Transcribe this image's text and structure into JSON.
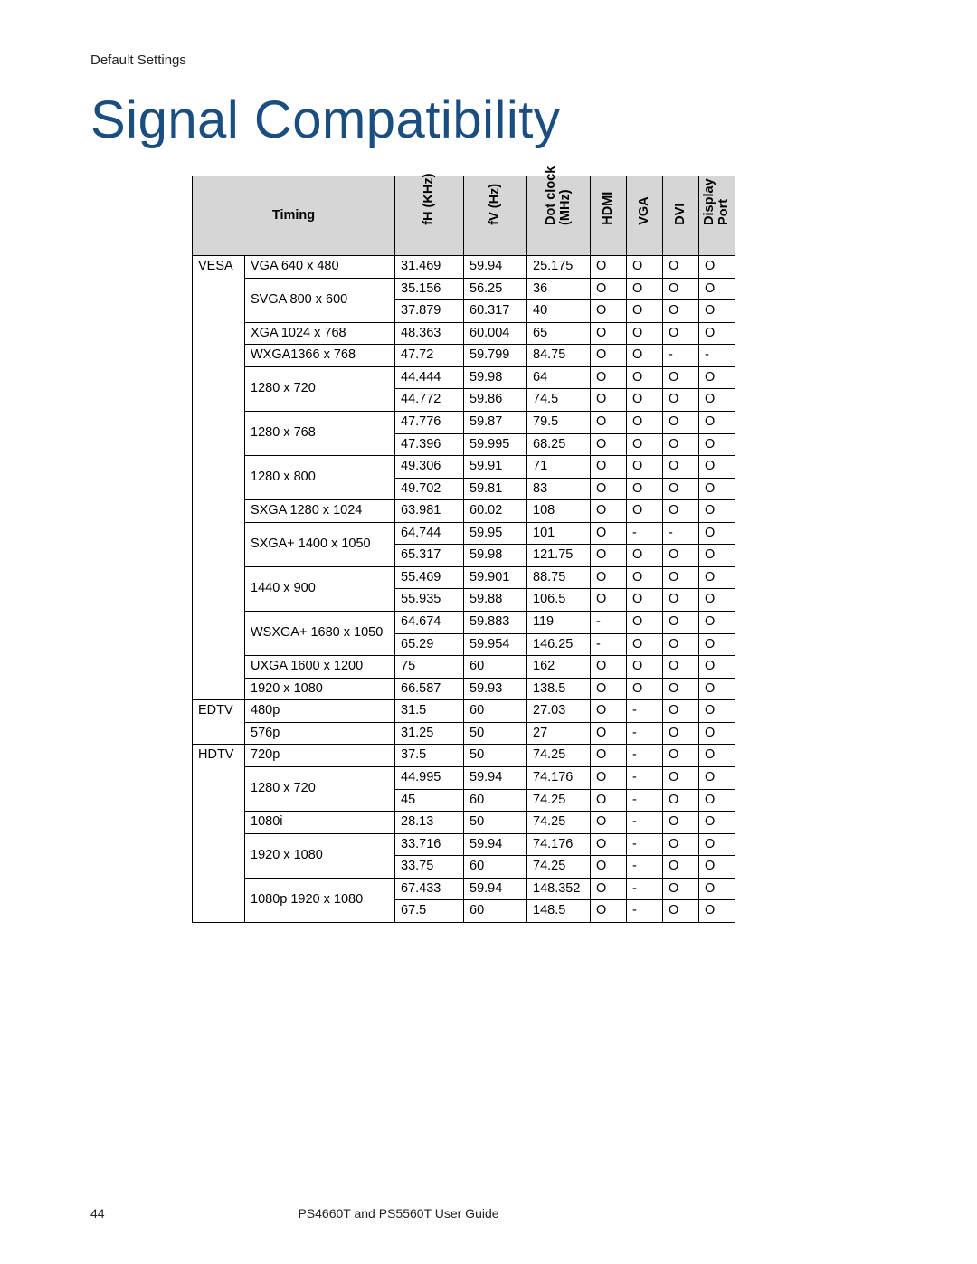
{
  "breadcrumb": "Default Settings",
  "title": "Signal Compatibility",
  "title_color": "#1a4d80",
  "header_bg": "#d6d6d6",
  "columns": {
    "timing": "Timing",
    "fh": "fH (KHz)",
    "fv": "fV (Hz)",
    "dotclock": "Dot clock (MHz)",
    "hdmi": "HDMI",
    "vga": "VGA",
    "dvi": "DVI",
    "dp": "Display Port"
  },
  "categories": [
    "VESA",
    "EDTV",
    "HDTV"
  ],
  "rows": [
    {
      "cat": "VESA",
      "res": "VGA 640 x 480",
      "fh": "31.469",
      "fv": "59.94",
      "dot": "25.175",
      "hdmi": "O",
      "vga": "O",
      "dvi": "O",
      "dp": "O"
    },
    {
      "cat": "",
      "res": "SVGA 800 x 600",
      "fh": "35.156",
      "fv": "56.25",
      "dot": "36",
      "hdmi": "O",
      "vga": "O",
      "dvi": "O",
      "dp": "O"
    },
    {
      "cat": "",
      "res": "",
      "fh": "37.879",
      "fv": "60.317",
      "dot": "40",
      "hdmi": "O",
      "vga": "O",
      "dvi": "O",
      "dp": "O"
    },
    {
      "cat": "",
      "res": "XGA 1024 x 768",
      "fh": "48.363",
      "fv": "60.004",
      "dot": "65",
      "hdmi": "O",
      "vga": "O",
      "dvi": "O",
      "dp": "O"
    },
    {
      "cat": "",
      "res": "WXGA1366 x 768",
      "fh": "47.72",
      "fv": "59.799",
      "dot": "84.75",
      "hdmi": "O",
      "vga": "O",
      "dvi": "-",
      "dp": "-"
    },
    {
      "cat": "",
      "res": "1280 x 720",
      "fh": "44.444",
      "fv": "59.98",
      "dot": "64",
      "hdmi": "O",
      "vga": "O",
      "dvi": "O",
      "dp": "O"
    },
    {
      "cat": "",
      "res": "",
      "fh": "44.772",
      "fv": "59.86",
      "dot": "74.5",
      "hdmi": "O",
      "vga": "O",
      "dvi": "O",
      "dp": "O"
    },
    {
      "cat": "",
      "res": "1280 x 768",
      "fh": "47.776",
      "fv": "59.87",
      "dot": "79.5",
      "hdmi": "O",
      "vga": "O",
      "dvi": "O",
      "dp": "O"
    },
    {
      "cat": "",
      "res": "",
      "fh": "47.396",
      "fv": "59.995",
      "dot": "68.25",
      "hdmi": "O",
      "vga": "O",
      "dvi": "O",
      "dp": "O"
    },
    {
      "cat": "",
      "res": "1280 x 800",
      "fh": "49.306",
      "fv": "59.91",
      "dot": "71",
      "hdmi": "O",
      "vga": "O",
      "dvi": "O",
      "dp": "O"
    },
    {
      "cat": "",
      "res": "",
      "fh": "49.702",
      "fv": "59.81",
      "dot": "83",
      "hdmi": "O",
      "vga": "O",
      "dvi": "O",
      "dp": "O"
    },
    {
      "cat": "",
      "res": "SXGA 1280 x 1024",
      "fh": "63.981",
      "fv": "60.02",
      "dot": "108",
      "hdmi": "O",
      "vga": "O",
      "dvi": "O",
      "dp": "O"
    },
    {
      "cat": "",
      "res": "SXGA+ 1400 x 1050",
      "fh": "64.744",
      "fv": "59.95",
      "dot": "101",
      "hdmi": "O",
      "vga": "-",
      "dvi": "-",
      "dp": "O"
    },
    {
      "cat": "",
      "res": "",
      "fh": "65.317",
      "fv": "59.98",
      "dot": "121.75",
      "hdmi": "O",
      "vga": "O",
      "dvi": "O",
      "dp": "O"
    },
    {
      "cat": "",
      "res": "1440 x 900",
      "fh": "55.469",
      "fv": "59.901",
      "dot": "88.75",
      "hdmi": "O",
      "vga": "O",
      "dvi": "O",
      "dp": "O"
    },
    {
      "cat": "",
      "res": "",
      "fh": "55.935",
      "fv": "59.88",
      "dot": "106.5",
      "hdmi": "O",
      "vga": "O",
      "dvi": "O",
      "dp": "O"
    },
    {
      "cat": "",
      "res": "WSXGA+ 1680 x 1050",
      "fh": "64.674",
      "fv": "59.883",
      "dot": "119",
      "hdmi": "-",
      "vga": "O",
      "dvi": "O",
      "dp": "O"
    },
    {
      "cat": "",
      "res": "",
      "fh": "65.29",
      "fv": "59.954",
      "dot": "146.25",
      "hdmi": "-",
      "vga": "O",
      "dvi": "O",
      "dp": "O"
    },
    {
      "cat": "",
      "res": "UXGA 1600 x 1200",
      "fh": "75",
      "fv": "60",
      "dot": "162",
      "hdmi": "O",
      "vga": "O",
      "dvi": "O",
      "dp": "O"
    },
    {
      "cat": "",
      "res": "1920 x 1080",
      "fh": "66.587",
      "fv": "59.93",
      "dot": "138.5",
      "hdmi": "O",
      "vga": "O",
      "dvi": "O",
      "dp": "O"
    },
    {
      "cat": "EDTV",
      "res": "480p",
      "fh": "31.5",
      "fv": "60",
      "dot": "27.03",
      "hdmi": "O",
      "vga": "-",
      "dvi": "O",
      "dp": "O"
    },
    {
      "cat": "",
      "res": "576p",
      "fh": "31.25",
      "fv": "50",
      "dot": "27",
      "hdmi": "O",
      "vga": "-",
      "dvi": "O",
      "dp": "O"
    },
    {
      "cat": "HDTV",
      "res": "720p",
      "fh": "37.5",
      "fv": "50",
      "dot": "74.25",
      "hdmi": "O",
      "vga": "-",
      "dvi": "O",
      "dp": "O"
    },
    {
      "cat": "",
      "res": "1280 x 720",
      "fh": "44.995",
      "fv": "59.94",
      "dot": "74.176",
      "hdmi": "O",
      "vga": "-",
      "dvi": "O",
      "dp": "O"
    },
    {
      "cat": "",
      "res": "",
      "fh": "45",
      "fv": "60",
      "dot": "74.25",
      "hdmi": "O",
      "vga": "-",
      "dvi": "O",
      "dp": "O"
    },
    {
      "cat": "",
      "res": "1080i",
      "fh": "28.13",
      "fv": "50",
      "dot": "74.25",
      "hdmi": "O",
      "vga": "-",
      "dvi": "O",
      "dp": "O"
    },
    {
      "cat": "",
      "res": "1920 x 1080",
      "fh": "33.716",
      "fv": "59.94",
      "dot": "74.176",
      "hdmi": "O",
      "vga": "-",
      "dvi": "O",
      "dp": "O"
    },
    {
      "cat": "",
      "res": "",
      "fh": "33.75",
      "fv": "60",
      "dot": "74.25",
      "hdmi": "O",
      "vga": "-",
      "dvi": "O",
      "dp": "O"
    },
    {
      "cat": "",
      "res": "1080p 1920 x 1080",
      "fh": "67.433",
      "fv": "59.94",
      "dot": "148.352",
      "hdmi": "O",
      "vga": "-",
      "dvi": "O",
      "dp": "O"
    },
    {
      "cat": "",
      "res": "",
      "fh": "67.5",
      "fv": "60",
      "dot": "148.5",
      "hdmi": "O",
      "vga": "-",
      "dvi": "O",
      "dp": "O"
    }
  ],
  "row_spans": {
    "cat": [
      {
        "start": 0,
        "span": 20
      },
      {
        "start": 20,
        "span": 2
      },
      {
        "start": 22,
        "span": 8
      }
    ],
    "res": [
      {
        "start": 0,
        "span": 1
      },
      {
        "start": 1,
        "span": 2
      },
      {
        "start": 3,
        "span": 1
      },
      {
        "start": 4,
        "span": 1
      },
      {
        "start": 5,
        "span": 2
      },
      {
        "start": 7,
        "span": 2
      },
      {
        "start": 9,
        "span": 2
      },
      {
        "start": 11,
        "span": 1
      },
      {
        "start": 12,
        "span": 2
      },
      {
        "start": 14,
        "span": 2
      },
      {
        "start": 16,
        "span": 2
      },
      {
        "start": 18,
        "span": 1
      },
      {
        "start": 19,
        "span": 1
      },
      {
        "start": 20,
        "span": 1
      },
      {
        "start": 21,
        "span": 1
      },
      {
        "start": 22,
        "span": 1
      },
      {
        "start": 23,
        "span": 2
      },
      {
        "start": 25,
        "span": 1
      },
      {
        "start": 26,
        "span": 2
      },
      {
        "start": 28,
        "span": 2
      }
    ]
  },
  "footer": {
    "page_number": "44",
    "text": "PS4660T and PS5560T User Guide"
  }
}
